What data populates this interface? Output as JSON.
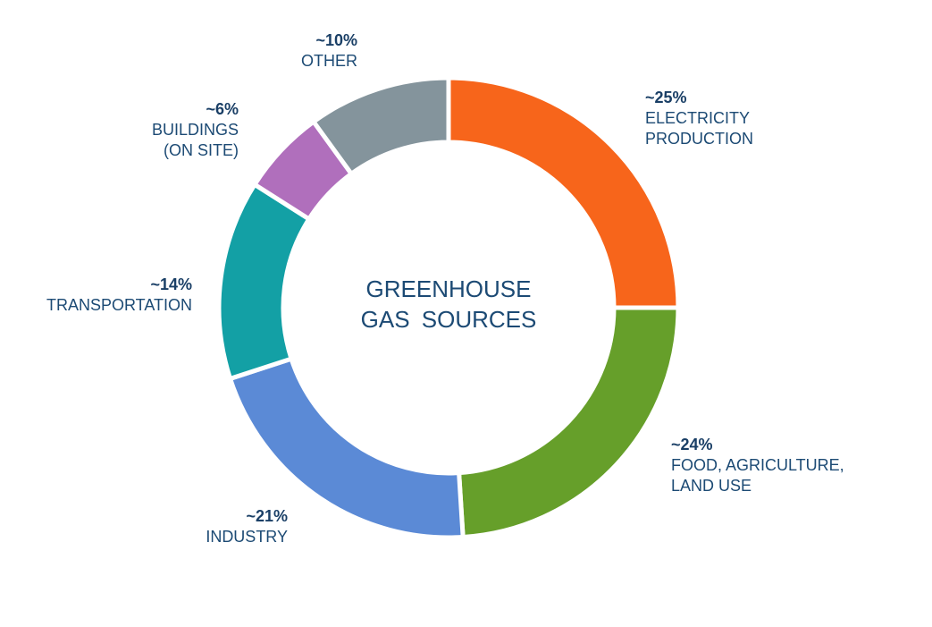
{
  "chart_data": {
    "type": "donut",
    "title": "GREENHOUSE GAS SOURCES",
    "categories": [
      "ELECTRICITY PRODUCTION",
      "FOOD, AGRICULTURE, LAND USE",
      "INDUSTRY",
      "TRANSPORTATION",
      "BUILDINGS (ON SITE)",
      "OTHER"
    ],
    "values": [
      25,
      24,
      21,
      14,
      6,
      10
    ],
    "value_labels": [
      "~25%",
      "~24%",
      "~21%",
      "~14%",
      "~6%",
      "~10%"
    ],
    "colors": [
      "#f7651b",
      "#669f2a",
      "#5b8ad6",
      "#13a0a5",
      "#b06fbc",
      "#84949c"
    ]
  }
}
